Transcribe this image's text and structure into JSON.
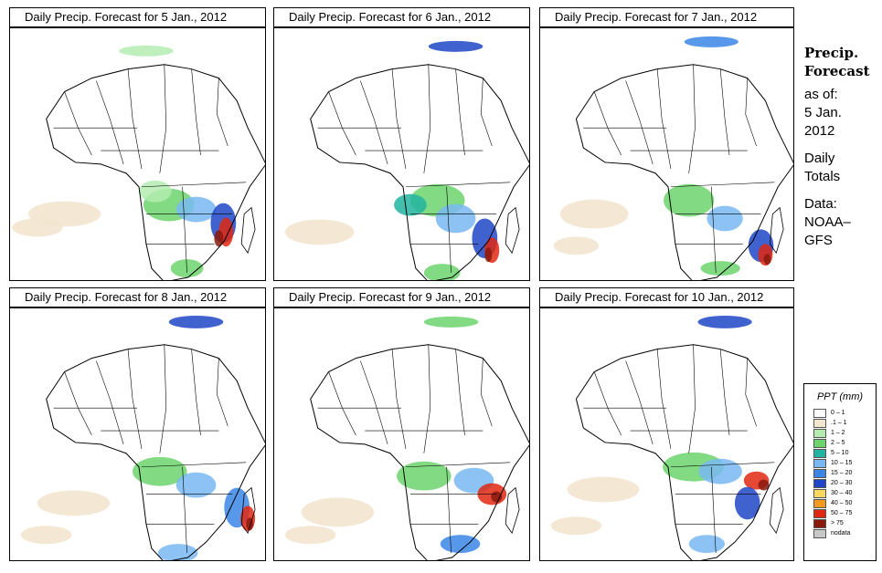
{
  "panels": [
    {
      "title": "Daily Precip. Forecast for  5 Jan., 2012"
    },
    {
      "title": "Daily Precip. Forecast for  6 Jan., 2012"
    },
    {
      "title": "Daily Precip. Forecast for  7 Jan., 2012"
    },
    {
      "title": "Daily Precip. Forecast for  8 Jan., 2012"
    },
    {
      "title": "Daily Precip. Forecast for  9 Jan., 2012"
    },
    {
      "title": "Daily Precip. Forecast for  10 Jan., 2012"
    }
  ],
  "side": {
    "heading_line1": "Precip.",
    "heading_line2": "Forecast",
    "asof_label": "as of:",
    "date_line1": "5 Jan.",
    "date_line2": "2012",
    "daily_line1": "Daily",
    "daily_line2": "Totals",
    "data_line1": "Data:",
    "data_line2": "NOAA–",
    "data_line3": "GFS"
  },
  "legend": {
    "title": "PPT (mm)",
    "items": [
      {
        "label": "0 – 1",
        "color": "#ffffff"
      },
      {
        "label": ".1 – 1",
        "color": "#f3e6cf"
      },
      {
        "label": "1 – 2",
        "color": "#b4ecb0"
      },
      {
        "label": "2 – 5",
        "color": "#6cd46c"
      },
      {
        "label": "5 – 10",
        "color": "#22b4a0"
      },
      {
        "label": "10 – 15",
        "color": "#79b8f2"
      },
      {
        "label": "15 – 20",
        "color": "#3a86e6"
      },
      {
        "label": "20 – 30",
        "color": "#1f46c6"
      },
      {
        "label": "30 – 40",
        "color": "#f8d860"
      },
      {
        "label": "40 – 50",
        "color": "#f59a1e"
      },
      {
        "label": "50 – 75",
        "color": "#e02812"
      },
      {
        "label": "> 75",
        "color": "#8a1a0c"
      },
      {
        "label": "nodata",
        "color": "#c8c8c8"
      }
    ]
  }
}
